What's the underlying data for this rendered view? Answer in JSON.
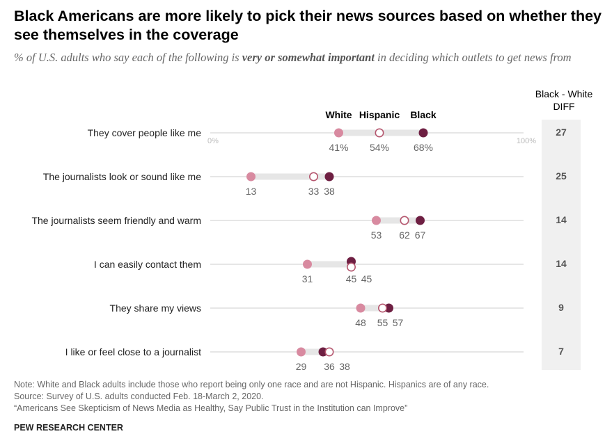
{
  "title": "Black Americans are more likely to pick their news sources based on whether they see themselves in the coverage",
  "subtitle_pre": "% of U.S. adults who say each of the following is ",
  "subtitle_bold": "very or somewhat important",
  "subtitle_post": " in deciding which outlets to get news from",
  "diff_header_line1": "Black - White",
  "diff_header_line2": "DIFF",
  "notes": [
    "Note: White and Black adults include those who report being only one race and are not Hispanic. Hispanics are of any race.",
    "Source: Survey of U.S. adults conducted Feb. 18-March 2, 2020.",
    "“Americans See Skepticism of News Media as Healthy, Say Public Trust in the Institution can Improve”"
  ],
  "source_org": "PEW RESEARCH CENTER",
  "colors": {
    "white": "#d88aa0",
    "hispanic": "#ffffff",
    "hispanic_stroke": "#b5576f",
    "black": "#6e1f42",
    "track": "#e6e6e6",
    "rule": "#cccccc"
  },
  "chart_data": {
    "type": "dot-plot",
    "xlim": [
      0,
      100
    ],
    "tick_labels": [
      "0%",
      "100%"
    ],
    "series": [
      {
        "name": "White",
        "style": "filled-pink"
      },
      {
        "name": "Hispanic",
        "style": "open-circle"
      },
      {
        "name": "Black",
        "style": "filled-dark"
      }
    ],
    "categories": [
      "They cover people like me",
      "The journalists look or sound like me",
      "The journalists seem friendly and warm",
      "I can easily contact them",
      "They share my views",
      "I like or feel close to a journalist"
    ],
    "values": {
      "White": [
        41,
        13,
        53,
        31,
        48,
        29
      ],
      "Hispanic": [
        54,
        33,
        62,
        45,
        55,
        38
      ],
      "Black": [
        68,
        38,
        67,
        45,
        57,
        36
      ]
    },
    "value_labels": [
      [
        "41%",
        "54%",
        "68%"
      ],
      [
        "13",
        "33",
        "38"
      ],
      [
        "53",
        "62",
        "67"
      ],
      [
        "31",
        "45",
        "45"
      ],
      [
        "48",
        "55",
        "57"
      ],
      [
        "29",
        "36",
        "38"
      ]
    ],
    "diff": [
      27,
      25,
      14,
      14,
      9,
      7
    ]
  }
}
